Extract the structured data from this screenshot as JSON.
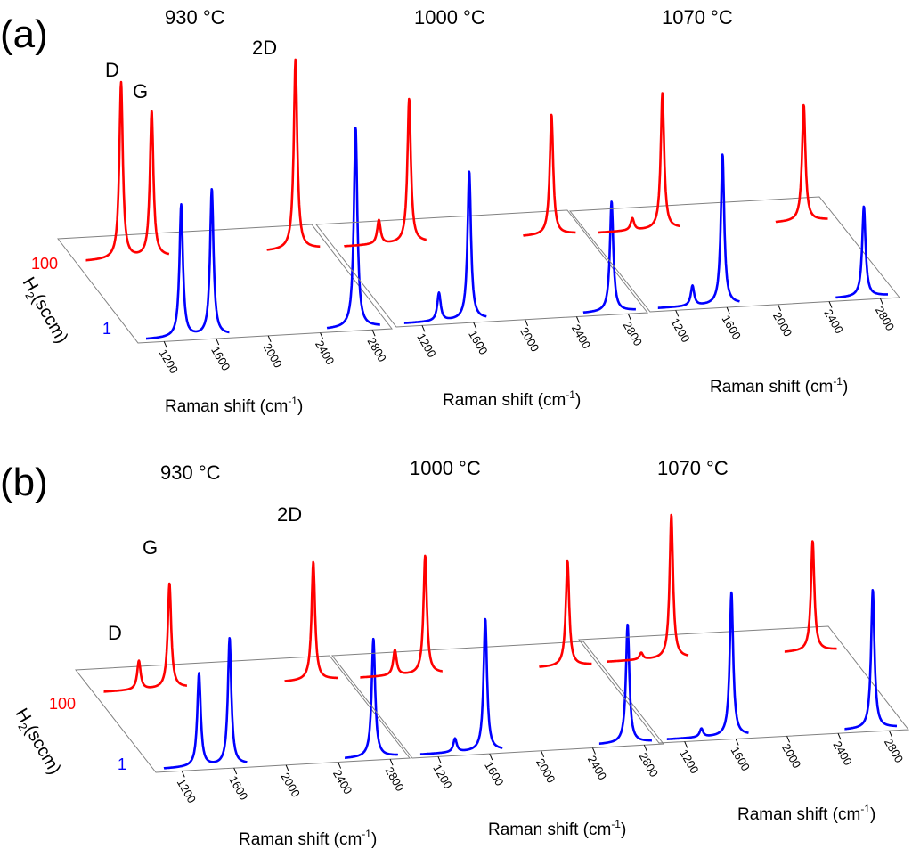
{
  "chart_data": [
    {
      "type": "line",
      "panel_label": "(a)",
      "series_colors": {
        "h2_1": "#0000ff",
        "h2_100": "#ff0000"
      },
      "y_axis_title_main": "H",
      "y_axis_title_sub": "2",
      "y_axis_title_rest": "(sccm)",
      "depth_labels": [
        "100",
        "1"
      ],
      "peak_labels": [
        "D",
        "G",
        "2D"
      ],
      "x_ticks": [
        "1200",
        "1600",
        "2000",
        "2400",
        "2800"
      ],
      "x_range": [
        1000,
        2950
      ],
      "plots": [
        {
          "title": "930 °C",
          "xlabel_main": "Raman shift (cm",
          "xlabel_sup": "-1",
          "xlabel_end": ")",
          "series": [
            {
              "name": "1 sccm",
              "peaks": [
                {
                  "pos": 1350,
                  "height": 0.66
                },
                {
                  "pos": 1585,
                  "height": 0.73
                },
                {
                  "pos": 2690,
                  "height": 1.0
                }
              ]
            },
            {
              "name": "100 sccm",
              "peaks": [
                {
                  "pos": 1350,
                  "height": 0.88
                },
                {
                  "pos": 1585,
                  "height": 0.73
                },
                {
                  "pos": 2690,
                  "height": 0.95
                }
              ]
            }
          ]
        },
        {
          "title": "1000 °C",
          "xlabel_main": "Raman shift (cm",
          "xlabel_sup": "-1",
          "xlabel_end": ")",
          "series": [
            {
              "name": "1 sccm",
              "peaks": [
                {
                  "pos": 1350,
                  "height": 0.14
                },
                {
                  "pos": 1585,
                  "height": 0.74
                },
                {
                  "pos": 2690,
                  "height": 0.55
                }
              ]
            },
            {
              "name": "100 sccm",
              "peaks": [
                {
                  "pos": 1350,
                  "height": 0.12
                },
                {
                  "pos": 1585,
                  "height": 0.72
                },
                {
                  "pos": 2690,
                  "height": 0.6
                }
              ]
            }
          ]
        },
        {
          "title": "1070 °C",
          "xlabel_main": "Raman shift (cm",
          "xlabel_sup": "-1",
          "xlabel_end": ")",
          "series": [
            {
              "name": "1 sccm",
              "peaks": [
                {
                  "pos": 1350,
                  "height": 0.1
                },
                {
                  "pos": 1585,
                  "height": 0.75
                },
                {
                  "pos": 2690,
                  "height": 0.45
                }
              ]
            },
            {
              "name": "100 sccm",
              "peaks": [
                {
                  "pos": 1350,
                  "height": 0.06
                },
                {
                  "pos": 1585,
                  "height": 0.68
                },
                {
                  "pos": 2690,
                  "height": 0.58
                }
              ]
            }
          ]
        }
      ]
    },
    {
      "type": "line",
      "panel_label": "(b)",
      "series_colors": {
        "h2_1": "#0000ff",
        "h2_100": "#ff0000"
      },
      "y_axis_title_main": "H",
      "y_axis_title_sub": "2",
      "y_axis_title_rest": "(sccm)",
      "depth_labels": [
        "100",
        "1"
      ],
      "peak_labels": [
        "D",
        "G",
        "2D"
      ],
      "x_ticks": [
        "1200",
        "1600",
        "2000",
        "2400",
        "2800"
      ],
      "x_range": [
        1000,
        2950
      ],
      "plots": [
        {
          "title": "930 °C",
          "xlabel_main": "Raman shift (cm",
          "xlabel_sup": "-1",
          "xlabel_end": ")",
          "series": [
            {
              "name": "1 sccm",
              "peaks": [
                {
                  "pos": 1350,
                  "height": 0.55
                },
                {
                  "pos": 1585,
                  "height": 0.75
                },
                {
                  "pos": 2690,
                  "height": 0.7
                }
              ]
            },
            {
              "name": "100 sccm",
              "peaks": [
                {
                  "pos": 1350,
                  "height": 0.17
                },
                {
                  "pos": 1585,
                  "height": 0.62
                },
                {
                  "pos": 2690,
                  "height": 0.7
                }
              ]
            }
          ]
        },
        {
          "title": "1000 °C",
          "xlabel_main": "Raman shift (cm",
          "xlabel_sup": "-1",
          "xlabel_end": ")",
          "series": [
            {
              "name": "1 sccm",
              "peaks": [
                {
                  "pos": 1350,
                  "height": 0.08
                },
                {
                  "pos": 1585,
                  "height": 0.78
                },
                {
                  "pos": 2690,
                  "height": 0.7
                }
              ]
            },
            {
              "name": "100 sccm",
              "peaks": [
                {
                  "pos": 1350,
                  "height": 0.15
                },
                {
                  "pos": 1585,
                  "height": 0.7
                },
                {
                  "pos": 2690,
                  "height": 0.62
                }
              ]
            }
          ]
        },
        {
          "title": "1070 °C",
          "xlabel_main": "Raman shift (cm",
          "xlabel_sup": "-1",
          "xlabel_end": ")",
          "series": [
            {
              "name": "1 sccm",
              "peaks": [
                {
                  "pos": 1350,
                  "height": 0.05
                },
                {
                  "pos": 1585,
                  "height": 0.85
                },
                {
                  "pos": 2690,
                  "height": 0.82
                }
              ]
            },
            {
              "name": "100 sccm",
              "peaks": [
                {
                  "pos": 1350,
                  "height": 0.04
                },
                {
                  "pos": 1585,
                  "height": 0.85
                },
                {
                  "pos": 2690,
                  "height": 0.65
                }
              ]
            }
          ]
        }
      ]
    }
  ]
}
